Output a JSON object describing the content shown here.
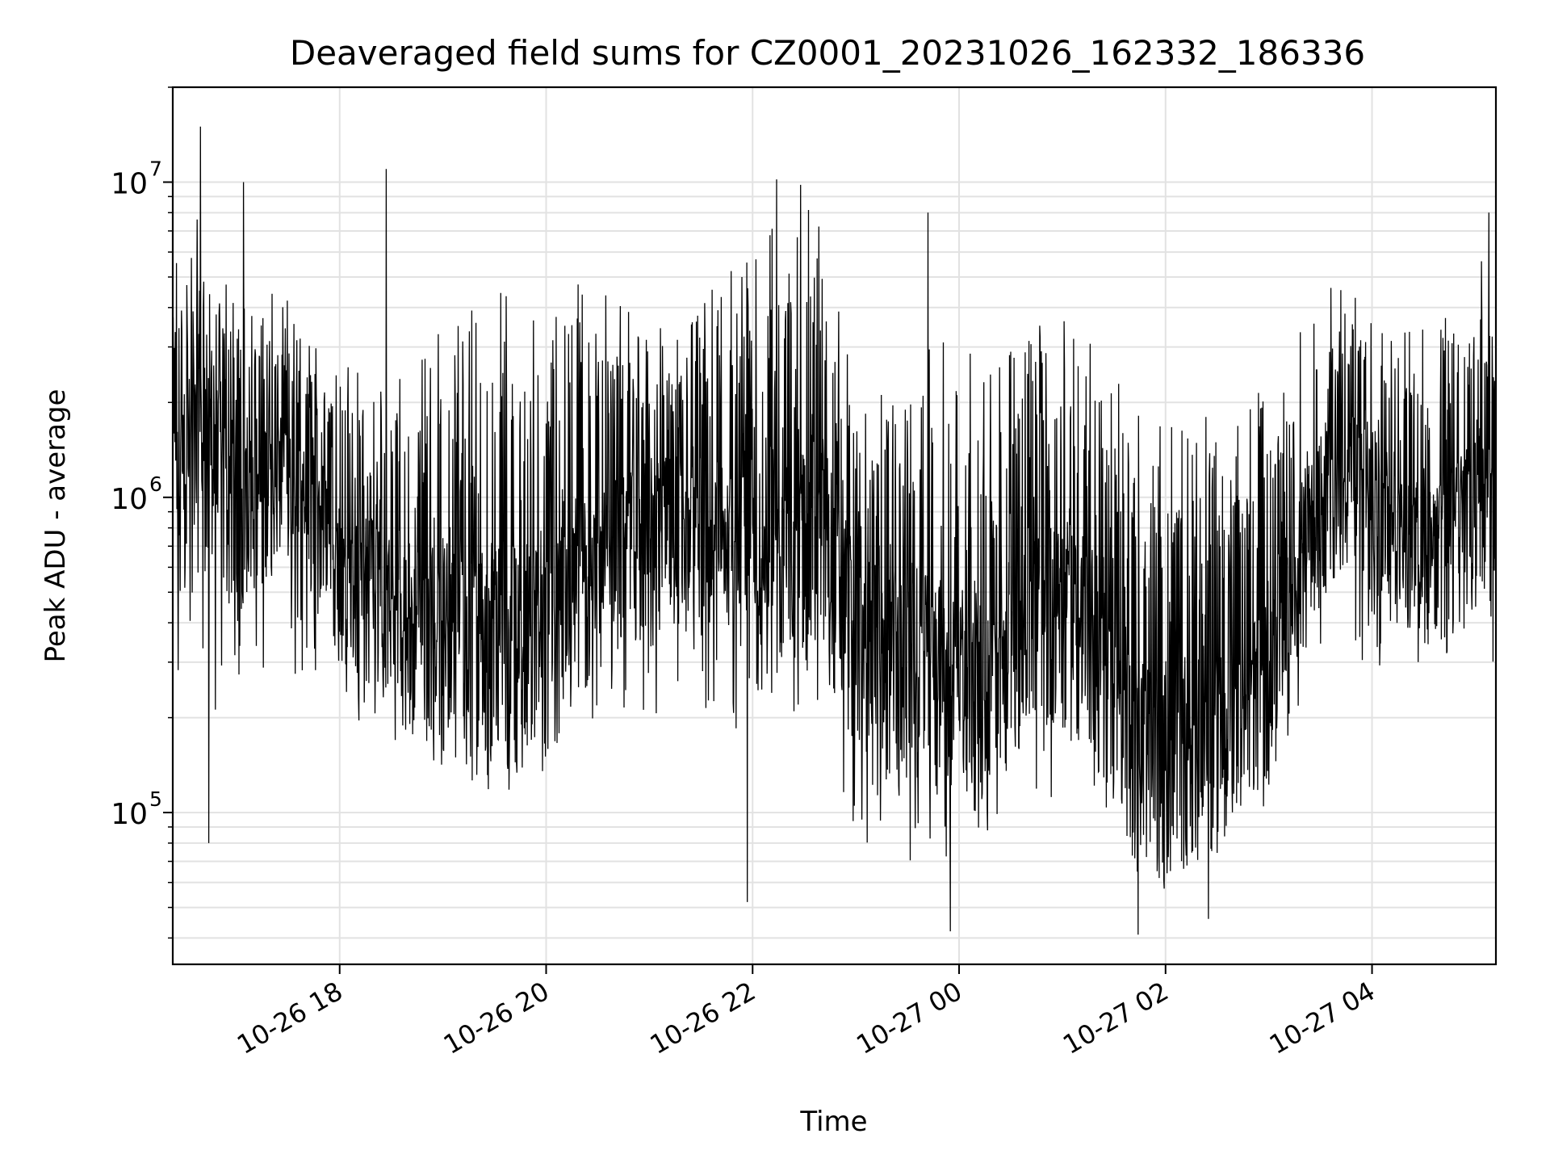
{
  "chart_data": {
    "type": "line",
    "title": "Deaveraged field sums for CZ0001_20231026_162332_186336",
    "xlabel": "Time",
    "ylabel": "Peak ADU - average",
    "yscale": "log",
    "ylim": [
      33000,
      20000000
    ],
    "xlim": [
      "2023-10-26T16:23",
      "2023-10-27T05:12"
    ],
    "grid": true,
    "color": "#000000",
    "x_ticks": [
      {
        "value": "2023-10-26T18:00",
        "label": "10-26 18"
      },
      {
        "value": "2023-10-26T20:00",
        "label": "10-26 20"
      },
      {
        "value": "2023-10-26T22:00",
        "label": "10-26 22"
      },
      {
        "value": "2023-10-27T00:00",
        "label": "10-27 00"
      },
      {
        "value": "2023-10-27T02:00",
        "label": "10-27 02"
      },
      {
        "value": "2023-10-27T04:00",
        "label": "10-27 04"
      }
    ],
    "y_ticks": [
      {
        "value": 100000,
        "base": "10",
        "exp": "5"
      },
      {
        "value": 1000000,
        "base": "10",
        "exp": "6"
      },
      {
        "value": 10000000,
        "base": "10",
        "exp": "7"
      }
    ],
    "series": [
      {
        "x": [
          "2023-10-26T16:23",
          "2023-10-26T16:40",
          "2023-10-26T17:00",
          "2023-10-26T17:20",
          "2023-10-26T17:40",
          "2023-10-26T18:00",
          "2023-10-26T18:20",
          "2023-10-26T18:40",
          "2023-10-26T19:00",
          "2023-10-26T19:20",
          "2023-10-26T19:40",
          "2023-10-26T20:00",
          "2023-10-26T20:20",
          "2023-10-26T20:40",
          "2023-10-26T21:00",
          "2023-10-26T21:20",
          "2023-10-26T21:40",
          "2023-10-26T22:00",
          "2023-10-26T22:20",
          "2023-10-26T22:40",
          "2023-10-26T23:00",
          "2023-10-26T23:20",
          "2023-10-26T23:40",
          "2023-10-27T00:00",
          "2023-10-27T00:20",
          "2023-10-27T00:40",
          "2023-10-27T01:00",
          "2023-10-27T01:20",
          "2023-10-27T01:40",
          "2023-10-27T02:00",
          "2023-10-27T02:20",
          "2023-10-27T02:40",
          "2023-10-27T03:00",
          "2023-10-27T03:20",
          "2023-10-27T03:40",
          "2023-10-27T04:00",
          "2023-10-27T04:20",
          "2023-10-27T04:40",
          "2023-10-27T05:00",
          "2023-10-27T05:12"
        ],
        "y": [
          900000,
          1400000,
          800000,
          1100000,
          900000,
          550000,
          450000,
          400000,
          350000,
          300000,
          320000,
          380000,
          450000,
          600000,
          700000,
          750000,
          650000,
          500000,
          600000,
          700000,
          330000,
          280000,
          250000,
          230000,
          240000,
          380000,
          420000,
          300000,
          160000,
          130000,
          150000,
          170000,
          250000,
          600000,
          1100000,
          900000,
          650000,
          600000,
          800000,
          750000
        ],
        "y_min": [
          250000,
          180000,
          200000,
          300000,
          250000,
          200000,
          180000,
          150000,
          120000,
          100000,
          110000,
          130000,
          150000,
          200000,
          200000,
          220000,
          200000,
          150000,
          200000,
          150000,
          80000,
          70000,
          70000,
          65000,
          75000,
          110000,
          110000,
          80000,
          60000,
          55000,
          60000,
          70000,
          90000,
          200000,
          300000,
          300000,
          250000,
          230000,
          250000,
          300000
        ],
        "y_max": [
          6000000,
          8000000,
          4500000,
          5000000,
          3500000,
          3500000,
          3000000,
          2500000,
          3500000,
          4500000,
          4500000,
          4000000,
          5000000,
          4500000,
          3500000,
          3500000,
          5000000,
          7000000,
          8500000,
          8000000,
          2500000,
          2000000,
          3000000,
          3500000,
          2500000,
          4000000,
          4500000,
          3000000,
          2000000,
          1700000,
          2200000,
          1800000,
          2500000,
          3500000,
          5000000,
          4000000,
          3500000,
          3500000,
          5500000,
          6000000
        ],
        "peaks": [
          {
            "x": "2023-10-26T16:39",
            "y": 15000000
          },
          {
            "x": "2023-10-26T17:04",
            "y": 10000000
          },
          {
            "x": "2023-10-26T18:27",
            "y": 11000000
          },
          {
            "x": "2023-10-26T22:14",
            "y": 10200000
          },
          {
            "x": "2023-10-26T22:28",
            "y": 9800000
          },
          {
            "x": "2023-10-26T23:42",
            "y": 8000000
          },
          {
            "x": "2023-10-27T05:08",
            "y": 8000000
          }
        ],
        "troughs": [
          {
            "x": "2023-10-26T16:44",
            "y": 80000
          },
          {
            "x": "2023-10-26T21:57",
            "y": 52000
          },
          {
            "x": "2023-10-26T23:55",
            "y": 42000
          },
          {
            "x": "2023-10-27T01:44",
            "y": 41000
          },
          {
            "x": "2023-10-27T02:25",
            "y": 46000
          }
        ]
      }
    ]
  }
}
